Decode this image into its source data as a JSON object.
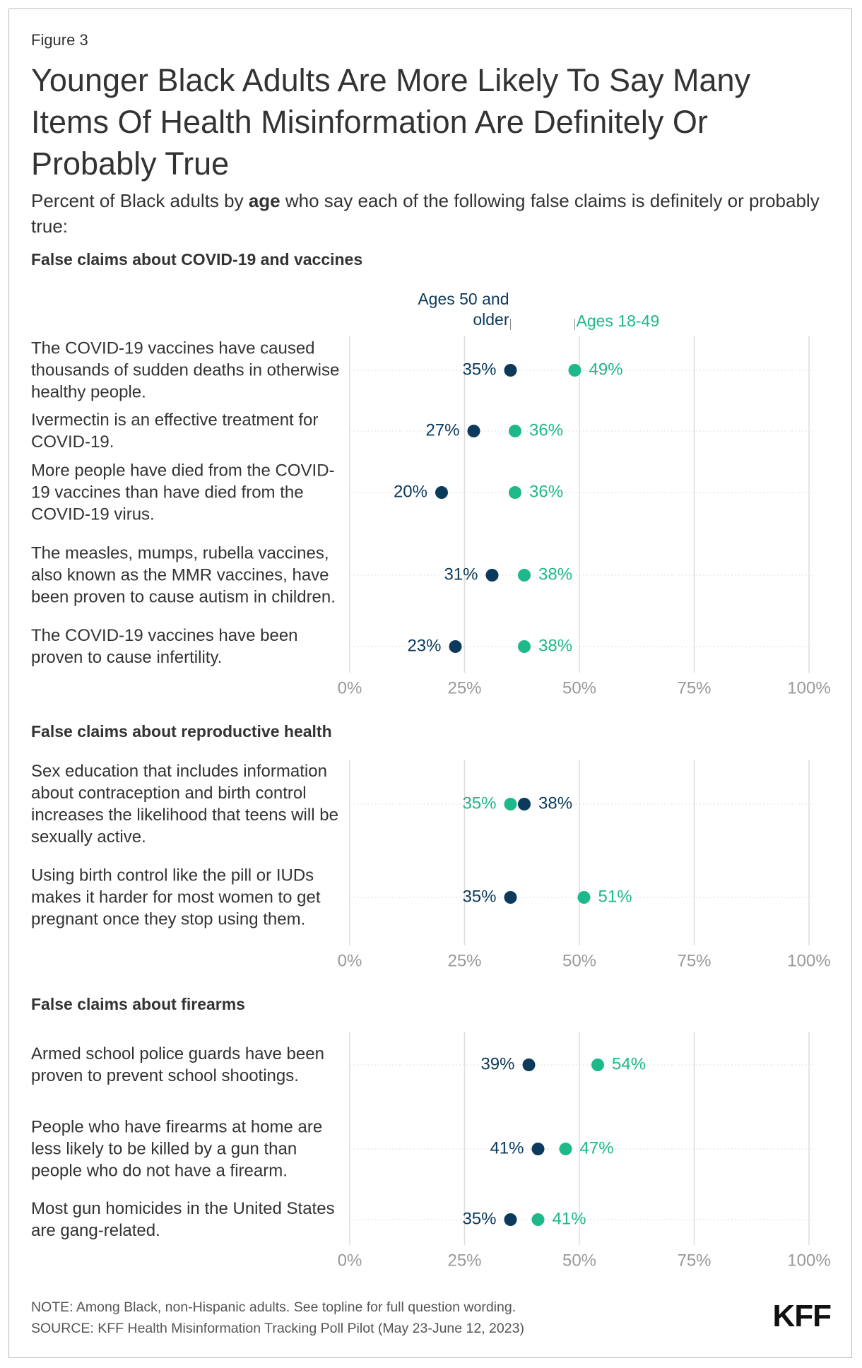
{
  "header": {
    "figure_label": "Figure 3",
    "title": "Younger Black Adults Are More Likely To Say Many Items Of Health Misinformation Are Definitely Or Probably True",
    "subtitle_parts": [
      "Percent of Black adults by ",
      "age",
      " who say each of the following false claims is definitely or probably true:"
    ]
  },
  "chart_data": [
    {
      "type": "dot",
      "title": "False claims about COVID-19 and vaccines",
      "categories": [
        "The COVID-19 vaccines have caused thousands of sudden deaths in otherwise healthy people.",
        "Ivermectin is an effective treatment for COVID-19.",
        "More people have died from the COVID-19 vaccines than have died from the COVID-19 virus.",
        "The measles, mumps, rubella vaccines, also known as the MMR vaccines, have been proven to cause autism in children.",
        "The COVID-19 vaccines have been proven to cause infertility."
      ],
      "series": [
        {
          "name": "Ages 50 and older",
          "color": "#0b3a5c",
          "values": [
            35,
            27,
            20,
            31,
            23
          ],
          "value_labels": [
            "35%",
            "27%",
            "20%",
            "31%",
            "23%"
          ]
        },
        {
          "name": "Ages 18-49",
          "color": "#1db98b",
          "values": [
            49,
            36,
            36,
            38,
            38
          ],
          "value_labels": [
            "49%",
            "36%",
            "36%",
            "38%",
            "38%"
          ]
        }
      ],
      "xlim": [
        0,
        100
      ],
      "xticks": [
        {
          "value": 0,
          "label": "0%"
        },
        {
          "value": 25,
          "label": "25%"
        },
        {
          "value": 50,
          "label": "50%"
        },
        {
          "value": 75,
          "label": "75%"
        },
        {
          "value": 100,
          "label": "100%"
        }
      ],
      "grid": true
    },
    {
      "type": "dot",
      "title": "False claims about reproductive health",
      "categories": [
        "Sex education that includes information about contraception and birth control increases the likelihood that teens will be sexually active.",
        "Using birth control like the pill or IUDs makes it harder for most women to get pregnant once they stop using them."
      ],
      "series": [
        {
          "color": "#0b3a5c",
          "values": [
            38,
            35
          ],
          "value_labels": [
            "38%",
            "35%"
          ]
        },
        {
          "color": "#1db98b",
          "values": [
            35,
            51
          ],
          "value_labels": [
            "35%",
            "51%"
          ]
        }
      ],
      "xlim": [
        0,
        100
      ],
      "xticks": [
        {
          "value": 0,
          "label": "0%"
        },
        {
          "value": 25,
          "label": "25%"
        },
        {
          "value": 50,
          "label": "50%"
        },
        {
          "value": 75,
          "label": "75%"
        },
        {
          "value": 100,
          "label": "100%"
        }
      ],
      "grid": true
    },
    {
      "type": "dot",
      "title": "False claims about firearms",
      "categories": [
        "Armed school police guards have been proven to prevent school shootings.",
        "People who have firearms at home are less likely to be killed by a gun than people who do not have a firearm.",
        "Most gun homicides in the United States are gang-related."
      ],
      "series": [
        {
          "color": "#0b3a5c",
          "values": [
            39,
            41,
            35
          ],
          "value_labels": [
            "39%",
            "41%",
            "35%"
          ]
        },
        {
          "color": "#1db98b",
          "values": [
            54,
            47,
            41
          ],
          "value_labels": [
            "54%",
            "47%",
            "41%"
          ]
        }
      ],
      "xlim": [
        0,
        100
      ],
      "xticks": [
        {
          "value": 0,
          "label": "0%"
        },
        {
          "value": 25,
          "label": "25%"
        },
        {
          "value": 50,
          "label": "50%"
        },
        {
          "value": 75,
          "label": "75%"
        },
        {
          "value": 100,
          "label": "100%"
        }
      ],
      "grid": true
    }
  ],
  "footer": {
    "note": "NOTE: Among Black, non-Hispanic adults. See topline for full question wording.",
    "source": "SOURCE: KFF Health Misinformation Tracking Poll Pilot (May 23-June 12, 2023)",
    "logo": "KFF"
  }
}
